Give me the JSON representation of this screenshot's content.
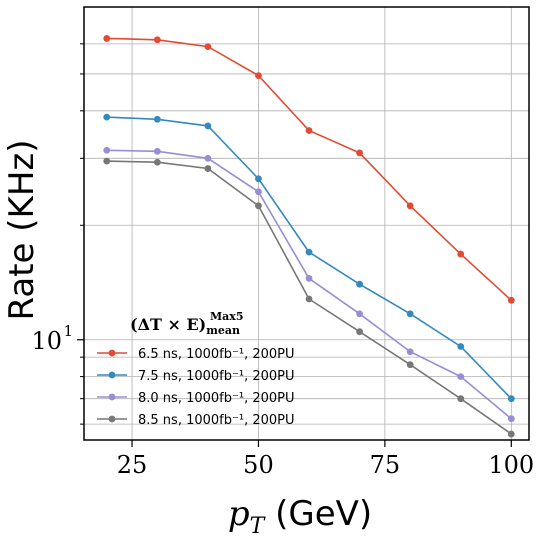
{
  "chart_data": {
    "type": "line",
    "title": "",
    "xlabel": "p_T",
    "xlabel_unit": " (GeV)",
    "ylabel": "Rate (KHz)",
    "xscale": "linear",
    "yscale": "log",
    "xlim": [
      15.5,
      103.5
    ],
    "ylim": [
      5.45,
      75
    ],
    "grid": true,
    "x_ticks": [
      25,
      50,
      75,
      100
    ],
    "y_major_ticks": [
      {
        "value": 10,
        "label": "10",
        "exponent": "1"
      }
    ],
    "y_minor_ticks": [
      6,
      7,
      8,
      9,
      20,
      30,
      40,
      50,
      60
    ],
    "legend": {
      "position": "lower-left",
      "title_main": "(ΔT × E)",
      "title_sup": "Max5",
      "title_sub": "mean"
    },
    "x": [
      20,
      30,
      40,
      50,
      60,
      70,
      80,
      90,
      100
    ],
    "series": [
      {
        "name": "6.5 ns, 1000fb⁻¹, 200PU",
        "color": "#e24a33",
        "values": [
          62,
          61.5,
          59,
          49.5,
          35.5,
          31,
          22.5,
          16.8,
          12.7
        ]
      },
      {
        "name": "7.5 ns, 1000fb⁻¹, 200PU",
        "color": "#348abd",
        "values": [
          38.5,
          38,
          36.5,
          26.5,
          17,
          14,
          11.7,
          9.6,
          7.0
        ]
      },
      {
        "name": "8.0 ns, 1000fb⁻¹, 200PU",
        "color": "#988ed5",
        "values": [
          31.5,
          31.3,
          30,
          24.5,
          14.5,
          11.7,
          9.3,
          8.0,
          6.2
        ]
      },
      {
        "name": "8.5 ns, 1000fb⁻¹, 200PU",
        "color": "#777777",
        "values": [
          29.5,
          29.3,
          28.2,
          22.5,
          12.8,
          10.5,
          8.6,
          7.0,
          5.65
        ]
      }
    ]
  }
}
